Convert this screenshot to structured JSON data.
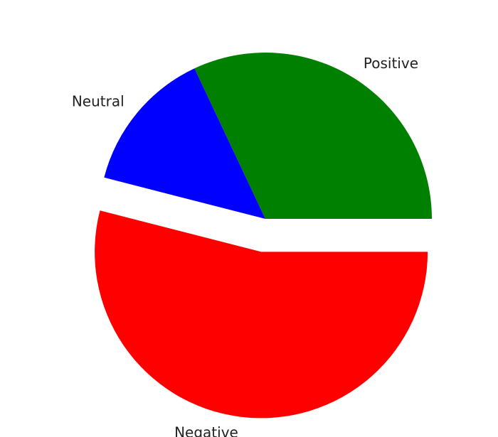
{
  "chart_data": {
    "type": "pie",
    "title": "",
    "categories": [
      "Positive",
      "Neutral",
      "Negative"
    ],
    "values": [
      32,
      14,
      54
    ],
    "colors": [
      "#008000",
      "#0000ff",
      "#ff0000"
    ],
    "explode": [
      0,
      0,
      0.2
    ],
    "start_angle_deg": 0,
    "direction": "counterclockwise",
    "legend": "none"
  }
}
